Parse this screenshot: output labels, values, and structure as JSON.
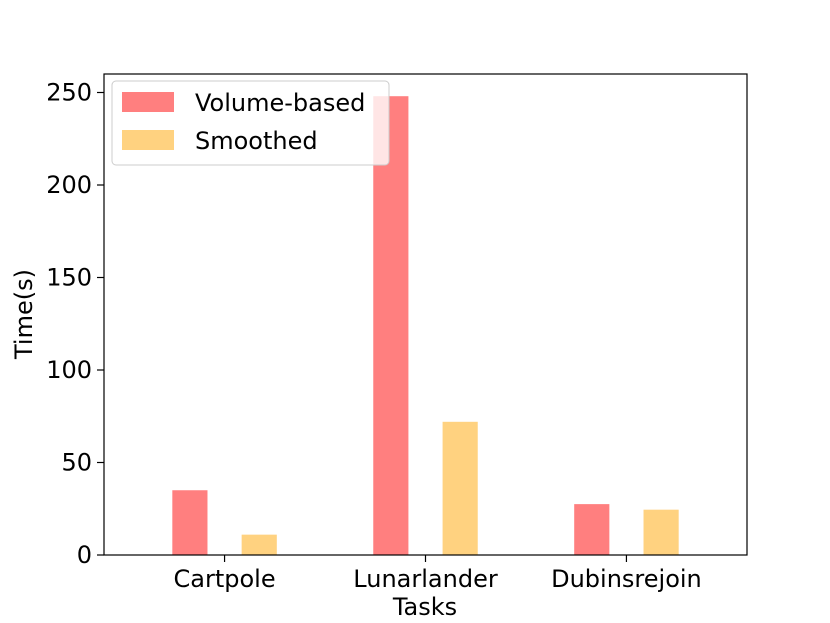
{
  "chart_data": {
    "type": "bar",
    "xlabel": "Tasks",
    "ylabel": "Time(s)",
    "categories": [
      "Cartpole",
      "Lunarlander",
      "Dubinsrejoin"
    ],
    "series": [
      {
        "name": "Volume-based",
        "color": "#ff7f7f",
        "values": [
          35,
          248,
          27.5
        ]
      },
      {
        "name": "Smoothed",
        "color": "#ffd280",
        "values": [
          11,
          72,
          24.5
        ]
      }
    ],
    "ylim": [
      0,
      260
    ],
    "yticks": [
      0,
      50,
      100,
      150,
      200,
      250
    ],
    "grid": false,
    "legend_position": "top-left"
  }
}
